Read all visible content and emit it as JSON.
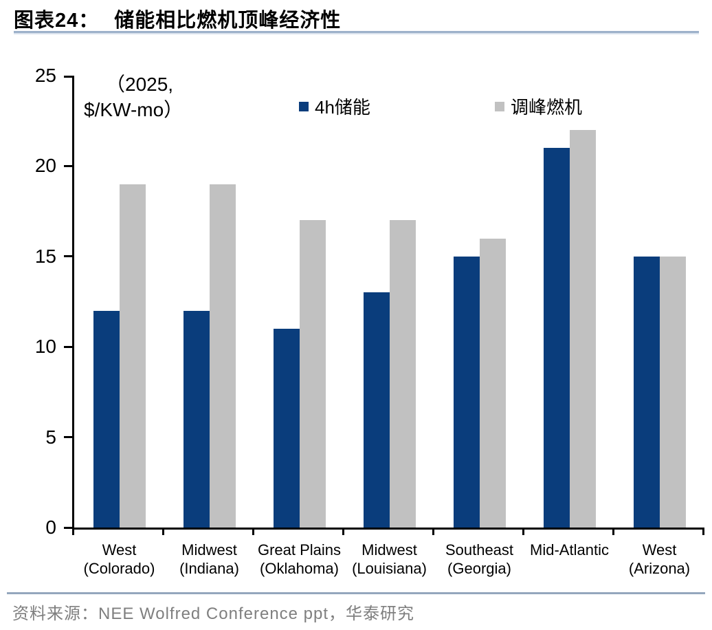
{
  "header": {
    "title_prefix": "图表24：",
    "title_text": "储能相比燃机顶峰经济性"
  },
  "chart_data": {
    "type": "bar",
    "title": "储能相比燃机顶峰经济性",
    "unit_note_line1": "（2025,",
    "unit_note_line2": "$/KW-mo）",
    "categories": [
      "West (Colorado)",
      "Midwest (Indiana)",
      "Great Plains (Oklahoma)",
      "Midwest (Louisiana)",
      "Southeast (Georgia)",
      "Mid-Atlantic",
      "West (Arizona)"
    ],
    "category_label_lines": [
      [
        "West",
        "(Colorado)"
      ],
      [
        "Midwest",
        "(Indiana)"
      ],
      [
        "Great Plains",
        "(Oklahoma)"
      ],
      [
        "Midwest",
        "(Louisiana)"
      ],
      [
        "Southeast",
        "(Georgia)"
      ],
      [
        "Mid-Atlantic",
        ""
      ],
      [
        "West",
        "(Arizona)"
      ]
    ],
    "series": [
      {
        "name": "4h储能",
        "color": "#0a3d7c",
        "values": [
          12,
          12,
          11,
          13,
          15,
          21,
          15
        ]
      },
      {
        "name": "调峰燃机",
        "color": "#c1c1c1",
        "values": [
          19,
          19,
          17,
          17,
          16,
          22,
          15
        ]
      }
    ],
    "xlabel": "",
    "ylabel": "",
    "ylim": [
      0,
      25
    ],
    "yticks": [
      0,
      5,
      10,
      15,
      20,
      25
    ],
    "grid": false,
    "legend_position": "top-inside"
  },
  "colors": {
    "axis": "#000000",
    "title_rule_dark": "#9db1ca",
    "title_rule_light": "#dbe3ee",
    "footer_rule": "#94a7bd",
    "source_text": "#7f7f7f"
  },
  "footer": {
    "source": "资料来源：NEE Wolfred Conference ppt，华泰研究"
  }
}
